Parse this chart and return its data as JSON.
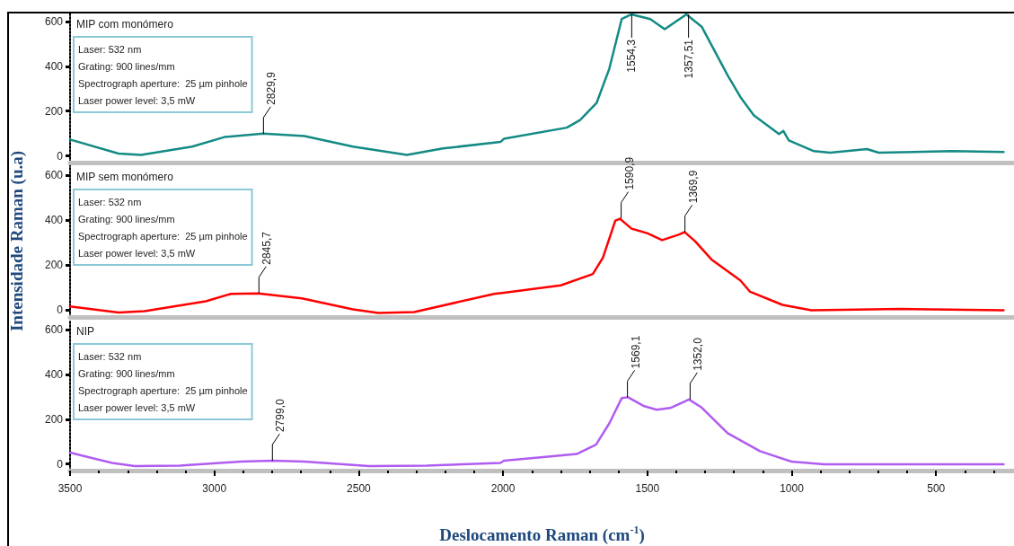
{
  "chart_data": [
    {
      "type": "line",
      "title": "MIP com monómero",
      "tick_labels": "y",
      "x": [
        3500,
        3332,
        3254,
        3077,
        2965,
        2831,
        2688,
        2520,
        2333,
        2208,
        2009,
        1997,
        1779,
        1733,
        1676,
        1632,
        1589,
        1555,
        1490,
        1440,
        1365,
        1312,
        1222,
        1178,
        1131,
        1044,
        1029,
        1010,
        923,
        867,
        739,
        699,
        444,
        266
      ],
      "series": [
        {
          "color": "#138a84",
          "values": [
            73,
            10,
            4,
            41,
            84,
            99,
            88,
            41,
            4,
            33,
            62,
            76,
            126,
            160,
            236,
            389,
            611,
            632,
            611,
            566,
            632,
            577,
            360,
            263,
            181,
            97,
            111,
            69,
            21,
            14,
            30,
            14,
            21,
            17
          ]
        }
      ],
      "xlim": [
        3500,
        230
      ],
      "xticks": [
        3500,
        3000,
        2500,
        2000,
        1500,
        1000,
        500
      ],
      "ylim": [
        -30,
        640
      ],
      "yticks": [
        0,
        200,
        400,
        600
      ],
      "grid": false,
      "line_style": "solid",
      "annotations": [
        "Laser: 532 nm",
        "Grating: 900 lines/mm",
        "Spectrograph aperture:  25 µm pinhole",
        "Laser power level: 3,5 mW",
        {
          "text": "2829,9",
          "x": 2829.9,
          "y": 99
        },
        {
          "text": "1554,3",
          "x": 1554.3,
          "y": 632
        },
        {
          "text": "1357,51",
          "x": 1357.51,
          "y": 632
        }
      ]
    },
    {
      "type": "line",
      "title": "MIP sem monómero",
      "tick_labels": "y",
      "ylabel": "Intensidade Raman (u.a)",
      "x": [
        3500,
        3332,
        3242,
        3030,
        2943,
        2848,
        2697,
        2520,
        2432,
        2308,
        2031,
        1997,
        1800,
        1689,
        1654,
        1611,
        1595,
        1555,
        1499,
        1449,
        1390,
        1371,
        1334,
        1278,
        1178,
        1144,
        1032,
        932,
        621,
        266
      ],
      "series": [
        {
          "color": "#ff0000",
          "values": [
            17,
            -10,
            -4,
            40,
            73,
            75,
            53,
            4,
            -12,
            -8,
            73,
            78,
            111,
            161,
            234,
            399,
            407,
            363,
            342,
            312,
            337,
            348,
            306,
            226,
            133,
            82,
            24,
            0,
            6,
            0
          ]
        }
      ],
      "xlim": [
        3500,
        230
      ],
      "xticks": [
        3500,
        3000,
        2500,
        2000,
        1500,
        1000,
        500
      ],
      "ylim": [
        -30,
        645
      ],
      "yticks": [
        0,
        200,
        400,
        600
      ],
      "grid": false,
      "line_style": "solid",
      "annotations": [
        "Laser: 532 nm",
        "Grating: 900 lines/mm",
        "Spectrograph aperture:  25 µm pinhole",
        "Laser power level: 3,5 mW",
        {
          "text": "2845,7",
          "x": 2845.7,
          "y": 75
        },
        {
          "text": "1590,9",
          "x": 1590.9,
          "y": 407
        },
        {
          "text": "1369,9",
          "x": 1369.9,
          "y": 348
        }
      ]
    },
    {
      "type": "line",
      "title": "NIP",
      "xlabel": "Deslocamento Raman (cm$^{-1}$)",
      "x": [
        3500,
        3354,
        3276,
        3120,
        2909,
        2797,
        2688,
        2464,
        2264,
        2009,
        1997,
        1745,
        1678,
        1632,
        1589,
        1567,
        1511,
        1468,
        1421,
        1356,
        1312,
        1222,
        1110,
        1001,
        889,
        266
      ],
      "series": [
        {
          "color": "#b05cf0",
          "values": [
            50,
            4,
            -10,
            -8,
            10,
            14,
            10,
            -10,
            -8,
            4,
            14,
            44,
            86,
            181,
            294,
            298,
            258,
            242,
            250,
            288,
            252,
            137,
            57,
            10,
            -2,
            -2
          ]
        }
      ],
      "xlim": [
        3500,
        230
      ],
      "xticks": [
        3500,
        3000,
        2500,
        2000,
        1500,
        1000,
        500
      ],
      "ylim": [
        -30,
        645
      ],
      "yticks": [
        0,
        200,
        400,
        600
      ],
      "grid": false,
      "line_style": "solid",
      "annotations": [
        "Laser: 532 nm",
        "Grating: 900 lines/mm",
        "Spectrograph aperture:  25 µm pinhole",
        "Laser power level: 3,5 mW",
        {
          "text": "2799,0",
          "x": 2799.0,
          "y": 14
        },
        {
          "text": "1569,1",
          "x": 1569.1,
          "y": 298
        },
        {
          "text": "1352,0",
          "x": 1352.0,
          "y": 288
        }
      ]
    }
  ]
}
